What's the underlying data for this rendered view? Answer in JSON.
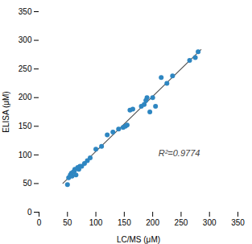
{
  "chart_data": {
    "type": "scatter",
    "xlabel": "LC/MS (μM)",
    "ylabel": "ELISA (μM)",
    "annotation": "R²=0.9774",
    "xlim": [
      0,
      350
    ],
    "ylim": [
      0,
      350
    ],
    "xticks": [
      0,
      50,
      100,
      150,
      200,
      250,
      300,
      350
    ],
    "yticks": [
      0,
      50,
      100,
      150,
      200,
      250,
      300,
      350
    ],
    "grid": false,
    "series": [
      {
        "type": "line",
        "color": "#555555",
        "x": [
          42,
          285
        ],
        "values": [
          50.449,
          283.673
        ]
      },
      {
        "type": "scatter",
        "color": "#2e86c1",
        "marker": "circle",
        "x": [
          50,
          52,
          55,
          57,
          58,
          60,
          62,
          63,
          65,
          68,
          70,
          72,
          75,
          80,
          85,
          90,
          100,
          110,
          120,
          130,
          140,
          148,
          152,
          155,
          160,
          165,
          180,
          185,
          188,
          190,
          195,
          200,
          205,
          215,
          225,
          235,
          265,
          275,
          280
        ],
        "values": [
          48,
          60,
          65,
          68,
          63,
          70,
          72,
          75,
          65,
          78,
          75,
          80,
          80,
          85,
          90,
          95,
          110,
          115,
          135,
          140,
          145,
          148,
          150,
          152,
          178,
          180,
          185,
          188,
          195,
          200,
          175,
          200,
          185,
          235,
          225,
          238,
          265,
          270,
          280
        ]
      }
    ]
  }
}
